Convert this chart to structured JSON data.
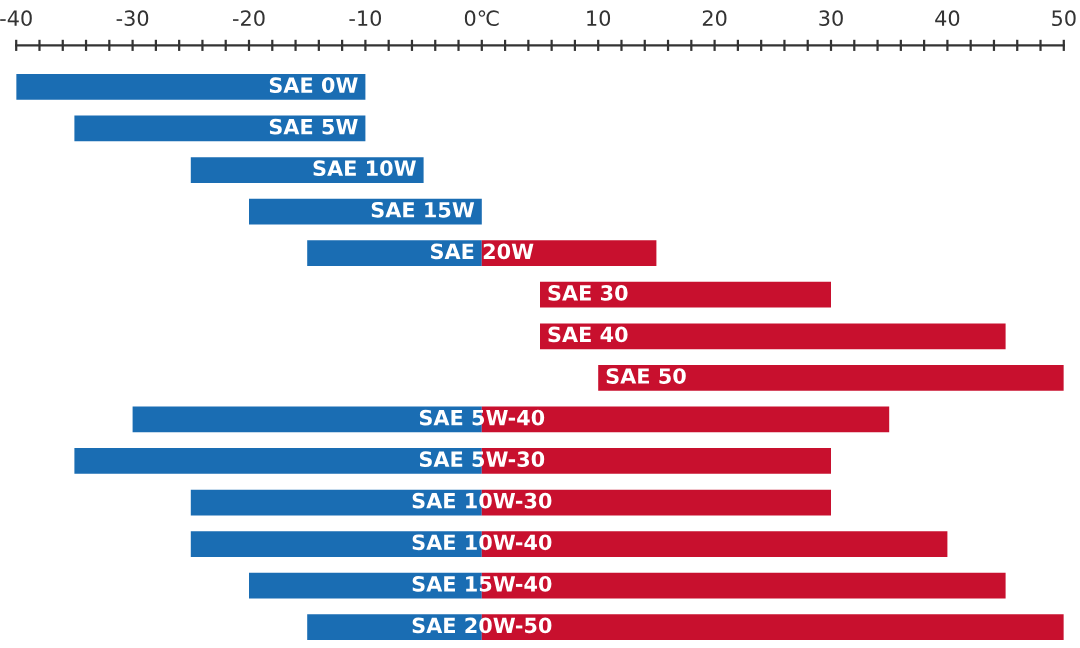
{
  "chart_data": {
    "type": "bar",
    "orientation": "horizontal",
    "categories": [
      "SAE 0W",
      "SAE 5W",
      "SAE 10W",
      "SAE 15W",
      "SAE 20W",
      "SAE 30",
      "SAE 40",
      "SAE 50",
      "SAE 5W-40",
      "SAE 5W-30",
      "SAE 10W-30",
      "SAE 10W-40",
      "SAE 15W-40",
      "SAE 20W-50"
    ],
    "series": [
      {
        "color": "#1a6db3",
        "base": [
          -40,
          -35,
          -25,
          -20,
          -15,
          null,
          null,
          null,
          -30,
          -35,
          -25,
          -25,
          -20,
          -15
        ],
        "values": [
          30,
          25,
          20,
          20,
          15,
          null,
          null,
          null,
          30,
          35,
          25,
          25,
          20,
          15
        ]
      },
      {
        "color": "#c8102e",
        "base": [
          null,
          null,
          null,
          null,
          0,
          5,
          5,
          10,
          0,
          0,
          0,
          0,
          0,
          0
        ],
        "values": [
          null,
          null,
          null,
          null,
          15,
          25,
          40,
          40,
          35,
          30,
          30,
          40,
          45,
          50
        ]
      }
    ],
    "xlim": [
      -40,
      50
    ],
    "xticks": [
      -40,
      {
        "value": -38,
        "label": null
      },
      {
        "value": -36,
        "label": null
      },
      {
        "value": -34,
        "label": null
      },
      {
        "value": -32,
        "label": null
      },
      -30,
      {
        "value": -28,
        "label": null
      },
      {
        "value": -26,
        "label": null
      },
      {
        "value": -24,
        "label": null
      },
      {
        "value": -22,
        "label": null
      },
      -20,
      {
        "value": -18,
        "label": null
      },
      {
        "value": -16,
        "label": null
      },
      {
        "value": -14,
        "label": null
      },
      {
        "value": -12,
        "label": null
      },
      -10,
      {
        "value": -8,
        "label": null
      },
      {
        "value": -6,
        "label": null
      },
      {
        "value": -4,
        "label": null
      },
      {
        "value": -2,
        "label": null
      },
      {
        "value": 0,
        "label": "0℃"
      },
      {
        "value": 2,
        "label": null
      },
      {
        "value": 4,
        "label": null
      },
      {
        "value": 6,
        "label": null
      },
      {
        "value": 8,
        "label": null
      },
      10,
      {
        "value": 12,
        "label": null
      },
      {
        "value": 14,
        "label": null
      },
      {
        "value": 16,
        "label": null
      },
      {
        "value": 18,
        "label": null
      },
      20,
      {
        "value": 22,
        "label": null
      },
      {
        "value": 24,
        "label": null
      },
      {
        "value": 26,
        "label": null
      },
      {
        "value": 28,
        "label": null
      },
      30,
      {
        "value": 32,
        "label": null
      },
      {
        "value": 34,
        "label": null
      },
      {
        "value": 36,
        "label": null
      },
      {
        "value": 38,
        "label": null
      },
      40,
      {
        "value": 42,
        "label": null
      },
      {
        "value": 44,
        "label": null
      },
      {
        "value": 46,
        "label": null
      },
      {
        "value": 48,
        "label": null
      },
      50
    ],
    "grid": false,
    "legend": false
  }
}
